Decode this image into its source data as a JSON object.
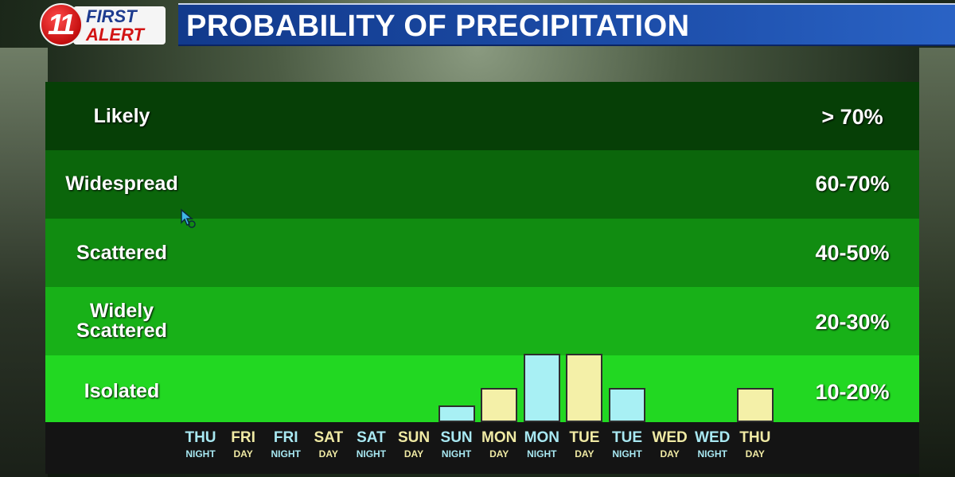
{
  "header": {
    "logo": {
      "number": "11",
      "line1": "FIRST",
      "line2": "ALERT"
    },
    "title": "PROBABILITY OF PRECIPITATION"
  },
  "bands": [
    {
      "label": "Likely",
      "range": "> 70%",
      "color": "#063f06"
    },
    {
      "label": "Widespread",
      "range": "60-70%",
      "color": "#0b660b"
    },
    {
      "label": "Scattered",
      "range": "40-50%",
      "color": "#118c11"
    },
    {
      "label": "Widely Scattered",
      "range": "20-30%",
      "color": "#18b118"
    },
    {
      "label": "Isolated",
      "range": "10-20%",
      "color": "#22d822"
    }
  ],
  "colors": {
    "night_bar": "#a8f0f4",
    "day_bar": "#f4f0a8",
    "axis_strip": "#141414"
  },
  "chart_data": {
    "type": "bar",
    "title": "PROBABILITY OF PRECIPITATION",
    "y_scale": "categorical levels (0 = none, 1 = Isolated 10-20%, 2 = Widely Scattered 20-30%)",
    "categories": [
      {
        "day": "THU",
        "part": "NIGHT"
      },
      {
        "day": "FRI",
        "part": "DAY"
      },
      {
        "day": "FRI",
        "part": "NIGHT"
      },
      {
        "day": "SAT",
        "part": "DAY"
      },
      {
        "day": "SAT",
        "part": "NIGHT"
      },
      {
        "day": "SUN",
        "part": "DAY"
      },
      {
        "day": "SUN",
        "part": "NIGHT"
      },
      {
        "day": "MON",
        "part": "DAY"
      },
      {
        "day": "MON",
        "part": "NIGHT"
      },
      {
        "day": "TUE",
        "part": "DAY"
      },
      {
        "day": "TUE",
        "part": "NIGHT"
      },
      {
        "day": "WED",
        "part": "DAY"
      },
      {
        "day": "WED",
        "part": "NIGHT"
      },
      {
        "day": "THU",
        "part": "DAY"
      }
    ],
    "values": [
      0,
      0,
      0,
      0,
      0,
      0,
      0.5,
      1,
      2,
      2,
      1,
      0,
      0,
      1
    ],
    "ylim": [
      0,
      5
    ]
  }
}
